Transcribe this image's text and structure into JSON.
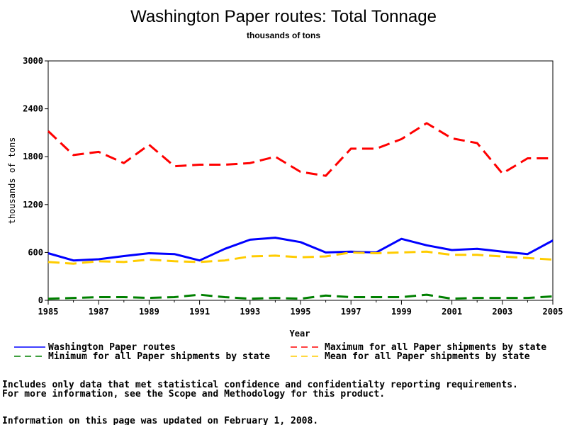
{
  "chart_data": {
    "type": "line",
    "title": "Washington Paper routes: Total Tonnage",
    "subtitle": "thousands of tons",
    "xlabel": "Year",
    "ylabel": "thousands of tons",
    "xlim": [
      1985,
      2005
    ],
    "ylim": [
      0,
      3000
    ],
    "grid": false,
    "legend_position": "bottom",
    "x_ticks": [
      "1985",
      "1987",
      "1989",
      "1991",
      "1993",
      "1995",
      "1997",
      "1999",
      "2001",
      "2003",
      "2005"
    ],
    "y_ticks": [
      "0",
      "600",
      "1200",
      "1800",
      "2400",
      "3000"
    ],
    "x": [
      1985,
      1986,
      1987,
      1988,
      1989,
      1990,
      1991,
      1992,
      1993,
      1994,
      1995,
      1996,
      1997,
      1998,
      1999,
      2000,
      2001,
      2002,
      2003,
      2004,
      2005
    ],
    "series": [
      {
        "name": "Washington Paper routes",
        "color": "#0000ff",
        "dash": "solid",
        "values": [
          590,
          500,
          515,
          555,
          590,
          580,
          500,
          645,
          760,
          785,
          730,
          600,
          610,
          600,
          770,
          690,
          630,
          645,
          610,
          580,
          750
        ]
      },
      {
        "name": "Maximum for all Paper shipments by state",
        "color": "#ff0000",
        "dash": "dashed",
        "values": [
          2120,
          1820,
          1860,
          1720,
          1950,
          1680,
          1700,
          1700,
          1720,
          1800,
          1610,
          1560,
          1900,
          1900,
          2020,
          2220,
          2030,
          1970,
          1590,
          1780,
          1780
        ]
      },
      {
        "name": "Minimum for all Paper shipments by state",
        "color": "#008000",
        "dash": "dashed",
        "values": [
          20,
          30,
          40,
          40,
          30,
          40,
          70,
          40,
          20,
          30,
          20,
          60,
          40,
          40,
          40,
          70,
          20,
          30,
          30,
          30,
          50
        ]
      },
      {
        "name": "Mean for all Paper shipments by state",
        "color": "#ffcc00",
        "dash": "dashed",
        "values": [
          480,
          460,
          490,
          480,
          510,
          490,
          480,
          500,
          550,
          560,
          540,
          550,
          600,
          590,
          600,
          610,
          570,
          570,
          550,
          530,
          510
        ]
      }
    ]
  },
  "footnotes": {
    "line1": "Includes only data that met statistical confidence and confidentialty reporting requirements.",
    "line2": "For more information, see the Scope and Methodology for this product.",
    "updated": "Information on this page was updated on February 1, 2008."
  }
}
